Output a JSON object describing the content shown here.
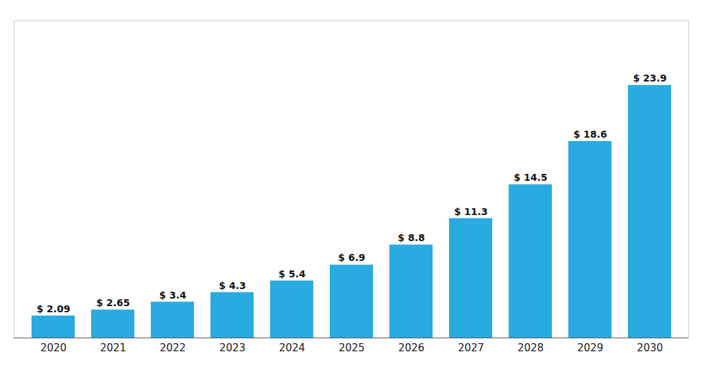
{
  "chart_data": {
    "type": "bar",
    "categories": [
      "2020",
      "2021",
      "2022",
      "2023",
      "2024",
      "2025",
      "2026",
      "2027",
      "2028",
      "2029",
      "2030"
    ],
    "values": [
      2.09,
      2.65,
      3.4,
      4.3,
      5.4,
      6.9,
      8.8,
      11.3,
      14.5,
      18.6,
      23.9
    ],
    "value_labels": [
      "$ 2.09",
      "$ 2.65",
      "$ 3.4",
      "$ 4.3",
      "$ 5.4",
      "$ 6.9",
      "$ 8.8",
      "$ 11.3",
      "$ 14.5",
      "$ 18.6",
      "$ 23.9"
    ],
    "color": "#29ABE2",
    "ylim": [
      0,
      30
    ],
    "data_labels": true,
    "tick_labels": "x",
    "grid": false
  }
}
